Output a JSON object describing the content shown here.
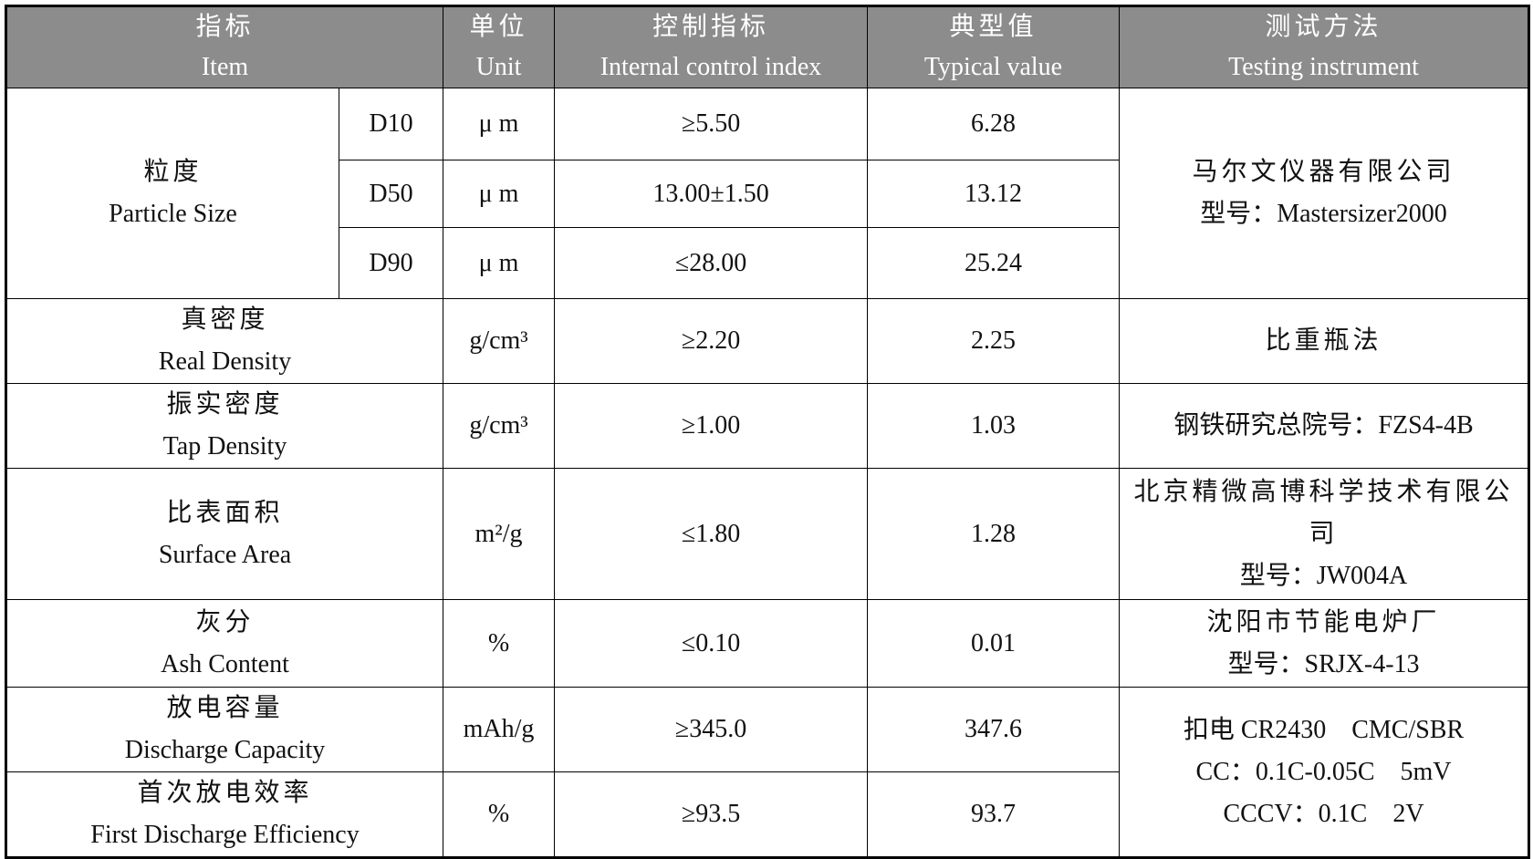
{
  "table": {
    "header": [
      [
        "指标",
        "Item"
      ],
      [
        "单位",
        "Unit"
      ],
      [
        "控制指标",
        "Internal control index"
      ],
      [
        "典型值",
        "Typical value"
      ],
      [
        "测试方法",
        "Testing instrument"
      ]
    ],
    "particle_size": {
      "item": [
        "粒度",
        "Particle Size"
      ],
      "instrument": [
        "马尔文仪器有限公司",
        "型号：Mastersizer2000"
      ],
      "rows": [
        [
          "D10",
          "μ m",
          "≥5.50",
          "6.28"
        ],
        [
          "D50",
          "μ m",
          "13.00±1.50",
          "13.12"
        ],
        [
          "D90",
          "μ m",
          "≤28.00",
          "25.24"
        ]
      ]
    },
    "rows": [
      {
        "item": [
          "真密度",
          "Real Density"
        ],
        "unit": "g/cm³",
        "control": "≥2.20",
        "typical": "2.25",
        "instrument": [
          "比重瓶法"
        ]
      },
      {
        "item": [
          "振实密度",
          "Tap Density"
        ],
        "unit": "g/cm³",
        "control": "≥1.00",
        "typical": "1.03",
        "instrument": [
          "钢铁研究总院号：FZS4-4B"
        ]
      },
      {
        "item": [
          "比表面积",
          "Surface Area"
        ],
        "unit": "m²/g",
        "control": "≤1.80",
        "typical": "1.28",
        "instrument": [
          "北京精微高博科学技术有限公司",
          "型号：JW004A"
        ]
      },
      {
        "item": [
          "灰分",
          "Ash Content"
        ],
        "unit": "%",
        "control": "≤0.10",
        "typical": "0.01",
        "instrument": [
          "沈阳市节能电炉厂",
          "型号：SRJX-4-13"
        ]
      },
      {
        "item": [
          "放电容量",
          "Discharge Capacity"
        ],
        "unit": "mAh/g",
        "control": "≥345.0",
        "typical": "347.6",
        "instrument": [
          "扣电 CR2430　CMC/SBR",
          "CC：0.1C-0.05C　5mV",
          "CCCV：0.1C　2V"
        ]
      },
      {
        "item": [
          "首次放电效率",
          "First Discharge Efficiency"
        ],
        "unit": "%",
        "control": "≥93.5",
        "typical": "93.7"
      }
    ]
  }
}
